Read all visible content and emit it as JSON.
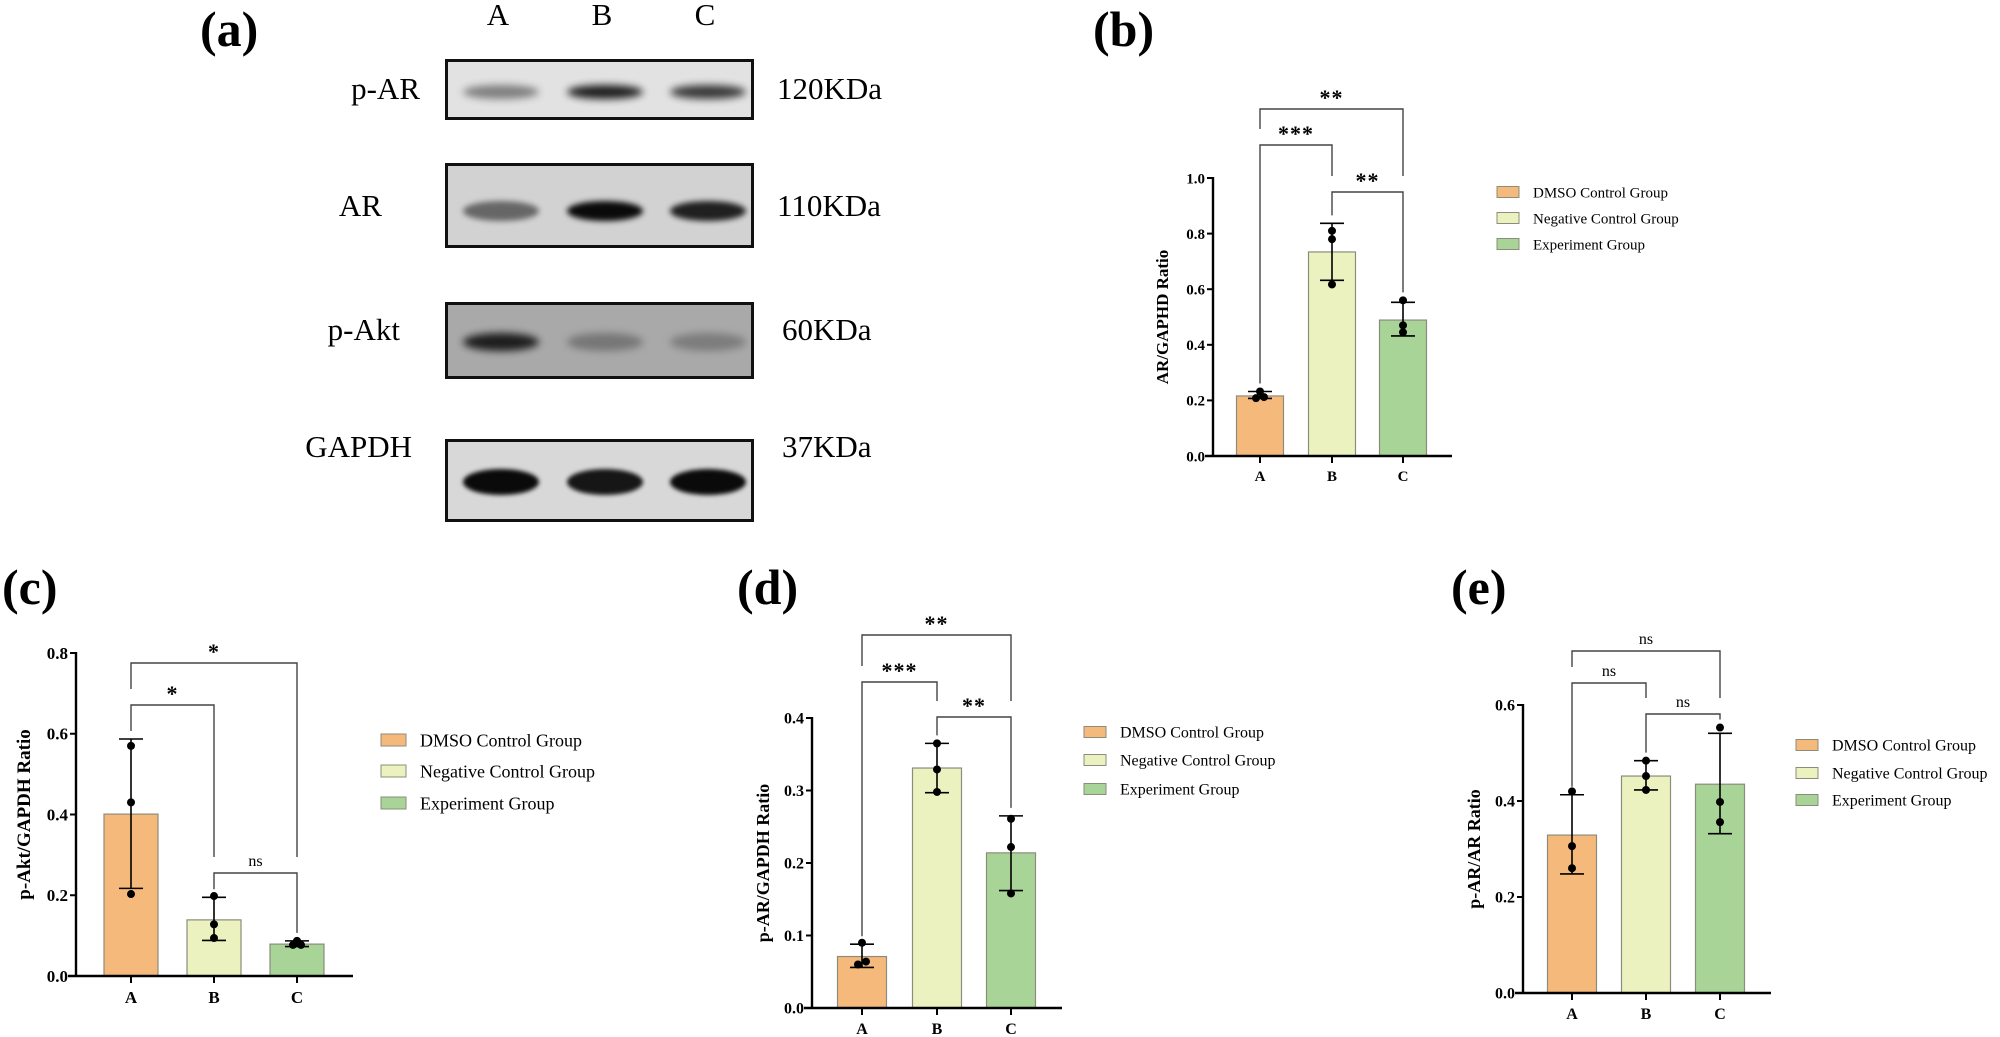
{
  "figure": {
    "panel_labels": {
      "a": "(a)",
      "b": "(b)",
      "c": "(c)",
      "d": "(d)",
      "e": "(e)"
    }
  },
  "western_blot": {
    "lanes": [
      "A",
      "B",
      "C"
    ],
    "rows": [
      {
        "protein": "p-AR",
        "size": "120KDa",
        "background": "#e2e2e2",
        "band_intensity": [
          0.45,
          0.92,
          0.8
        ]
      },
      {
        "protein": "AR",
        "size": "110KDa",
        "background": "#d2d2d2",
        "band_intensity": [
          0.55,
          1.0,
          0.9
        ]
      },
      {
        "protein": "p-Akt",
        "size": "60KDa",
        "background": "#a9a9a9",
        "band_intensity": [
          0.9,
          0.35,
          0.3
        ]
      },
      {
        "protein": "GAPDH",
        "size": "37KDa",
        "background": "#d8d8d8",
        "band_intensity": [
          1.0,
          0.95,
          1.0
        ]
      }
    ]
  },
  "legend": {
    "items": [
      {
        "label": "DMSO Control Group",
        "color": "#F5B97B"
      },
      {
        "label": "Negative Control Group",
        "color": "#EBF2C0"
      },
      {
        "label": "Experiment Group",
        "color": "#A9D497"
      }
    ]
  },
  "chart_data": [
    {
      "panel": "b",
      "type": "bar",
      "title": "",
      "xlabel": "",
      "ylabel": "AR/GAPHD Ratio",
      "categories": [
        "A",
        "B",
        "C"
      ],
      "values": [
        0.216,
        0.734,
        0.489
      ],
      "error_upper": [
        0.232,
        0.837,
        0.553
      ],
      "error_lower": [
        0.207,
        0.632,
        0.432
      ],
      "points": [
        [
          0.232,
          0.212,
          0.208
        ],
        [
          0.81,
          0.78,
          0.617
        ],
        [
          0.56,
          0.47,
          0.445
        ]
      ],
      "ylim": [
        0,
        1.0
      ],
      "yticks": [
        "0.0",
        "0.2",
        "0.4",
        "0.6",
        "0.8",
        "1.0"
      ],
      "grid": false,
      "legend_position": "right",
      "significance": [
        {
          "pair": [
            "A",
            "C"
          ],
          "label": "**"
        },
        {
          "pair": [
            "A",
            "B"
          ],
          "label": "***"
        },
        {
          "pair": [
            "B",
            "C"
          ],
          "label": "**"
        }
      ]
    },
    {
      "panel": "c",
      "type": "bar",
      "title": "",
      "xlabel": "",
      "ylabel": "p-Akt/GAPDH Ratio",
      "categories": [
        "A",
        "B",
        "C"
      ],
      "values": [
        0.401,
        0.139,
        0.079
      ],
      "error_upper": [
        0.587,
        0.195,
        0.087
      ],
      "error_lower": [
        0.217,
        0.088,
        0.073
      ],
      "points": [
        [
          0.57,
          0.43,
          0.203
        ],
        [
          0.198,
          0.128,
          0.094
        ],
        [
          0.087,
          0.077,
          0.077
        ]
      ],
      "ylim": [
        0,
        0.8
      ],
      "yticks": [
        "0.0",
        "0.2",
        "0.4",
        "0.6",
        "0.8"
      ],
      "grid": false,
      "legend_position": "right",
      "significance": [
        {
          "pair": [
            "A",
            "C"
          ],
          "label": "*"
        },
        {
          "pair": [
            "A",
            "B"
          ],
          "label": "*"
        },
        {
          "pair": [
            "B",
            "C"
          ],
          "label": "ns"
        }
      ]
    },
    {
      "panel": "d",
      "type": "bar",
      "title": "",
      "xlabel": "",
      "ylabel": "p-AR/GAPDH Ratio",
      "categories": [
        "A",
        "B",
        "C"
      ],
      "values": [
        0.071,
        0.331,
        0.214
      ],
      "error_upper": [
        0.088,
        0.365,
        0.265
      ],
      "error_lower": [
        0.056,
        0.297,
        0.162
      ],
      "points": [
        [
          0.09,
          0.064,
          0.06
        ],
        [
          0.365,
          0.329,
          0.298
        ],
        [
          0.261,
          0.222,
          0.158
        ]
      ],
      "ylim": [
        0,
        0.4
      ],
      "yticks": [
        "0.0",
        "0.1",
        "0.2",
        "0.3",
        "0.4"
      ],
      "grid": false,
      "legend_position": "right",
      "significance": [
        {
          "pair": [
            "A",
            "C"
          ],
          "label": "**"
        },
        {
          "pair": [
            "A",
            "B"
          ],
          "label": "***"
        },
        {
          "pair": [
            "B",
            "C"
          ],
          "label": "**"
        }
      ]
    },
    {
      "panel": "e",
      "type": "bar",
      "title": "",
      "xlabel": "",
      "ylabel": "p-AR/AR Ratio",
      "categories": [
        "A",
        "B",
        "C"
      ],
      "values": [
        0.329,
        0.452,
        0.435
      ],
      "error_upper": [
        0.413,
        0.484,
        0.541
      ],
      "error_lower": [
        0.248,
        0.423,
        0.332
      ],
      "points": [
        [
          0.42,
          0.306,
          0.26
        ],
        [
          0.484,
          0.452,
          0.423
        ],
        [
          0.553,
          0.398,
          0.356
        ]
      ],
      "ylim": [
        0,
        0.6
      ],
      "yticks": [
        "0.0",
        "0.2",
        "0.4",
        "0.6"
      ],
      "grid": false,
      "legend_position": "right",
      "significance": [
        {
          "pair": [
            "A",
            "C"
          ],
          "label": "ns"
        },
        {
          "pair": [
            "A",
            "B"
          ],
          "label": "ns"
        },
        {
          "pair": [
            "B",
            "C"
          ],
          "label": "ns"
        }
      ]
    }
  ]
}
